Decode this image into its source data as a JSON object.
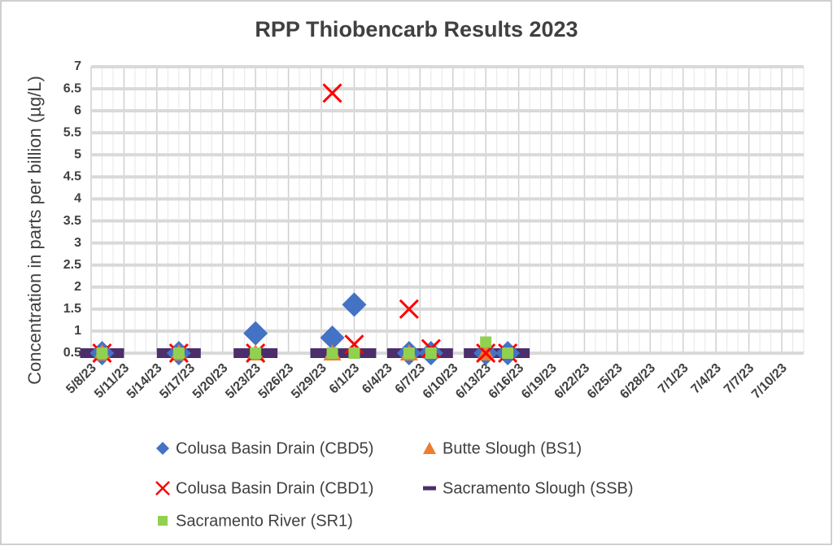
{
  "chart_data": {
    "type": "scatter",
    "title": "RPP Thiobencarb Results 2023",
    "y_label": "Concentration in parts per billion (µg/L)",
    "xlim": [
      "5/8/23",
      "7/12/23"
    ],
    "xticks": [
      "5/8/23",
      "5/11/23",
      "5/14/23",
      "5/17/23",
      "5/20/23",
      "5/23/23",
      "5/26/23",
      "5/29/23",
      "6/1/23",
      "6/4/23",
      "6/7/23",
      "6/10/23",
      "6/13/23",
      "6/16/23",
      "6/19/23",
      "6/22/23",
      "6/25/23",
      "6/28/23",
      "7/1/23",
      "7/4/23",
      "7/7/23",
      "7/10/23"
    ],
    "ylim": [
      0.5,
      7
    ],
    "yticks": [
      0.5,
      1,
      1.5,
      2,
      2.5,
      3,
      3.5,
      4,
      4.5,
      5,
      5.5,
      6,
      6.5,
      7
    ],
    "grid": true,
    "legend": "bottom",
    "series": [
      {
        "name": "Colusa Basin Drain (CBD5)",
        "color": "#4472c4",
        "marker": "diamond",
        "x": [
          "5/9/23",
          "5/16/23",
          "5/23/23",
          "5/30/23",
          "6/1/23",
          "6/6/23",
          "6/8/23",
          "6/13/23",
          "6/15/23"
        ],
        "values": [
          0.5,
          0.5,
          0.95,
          0.85,
          1.6,
          0.5,
          0.5,
          0.5,
          0.5
        ]
      },
      {
        "name": "Butte Slough (BS1)",
        "color": "#ed7d31",
        "marker": "triangle",
        "x": [
          "5/9/23",
          "5/16/23",
          "5/23/23",
          "5/30/23",
          "6/6/23",
          "6/13/23"
        ],
        "values": [
          0.5,
          0.5,
          0.5,
          0.5,
          0.5,
          0.5
        ]
      },
      {
        "name": "Colusa Basin Drain (CBD1)",
        "color": "#ff0000",
        "marker": "x",
        "x": [
          "5/9/23",
          "5/16/23",
          "5/23/23",
          "5/30/23",
          "6/1/23",
          "6/6/23",
          "6/8/23",
          "6/13/23",
          "6/15/23"
        ],
        "values": [
          0.5,
          0.5,
          0.5,
          6.4,
          0.7,
          1.5,
          0.6,
          0.5,
          0.5
        ]
      },
      {
        "name": "Sacramento Slough (SSB)",
        "color": "#4b2e6b",
        "marker": "dash",
        "x": [
          "5/9/23",
          "5/16/23",
          "5/23/23",
          "5/30/23",
          "6/1/23",
          "6/6/23",
          "6/8/23",
          "6/13/23",
          "6/15/23"
        ],
        "values": [
          0.5,
          0.5,
          0.5,
          0.5,
          0.5,
          0.5,
          0.5,
          0.5,
          0.5
        ]
      },
      {
        "name": "Sacramento River (SR1)",
        "color": "#92d050",
        "marker": "square",
        "x": [
          "5/9/23",
          "5/16/23",
          "5/23/23",
          "5/30/23",
          "6/1/23",
          "6/6/23",
          "6/8/23",
          "6/13/23",
          "6/15/23"
        ],
        "values": [
          0.5,
          0.5,
          0.5,
          0.5,
          0.5,
          0.5,
          0.5,
          0.75,
          0.5
        ]
      }
    ]
  }
}
